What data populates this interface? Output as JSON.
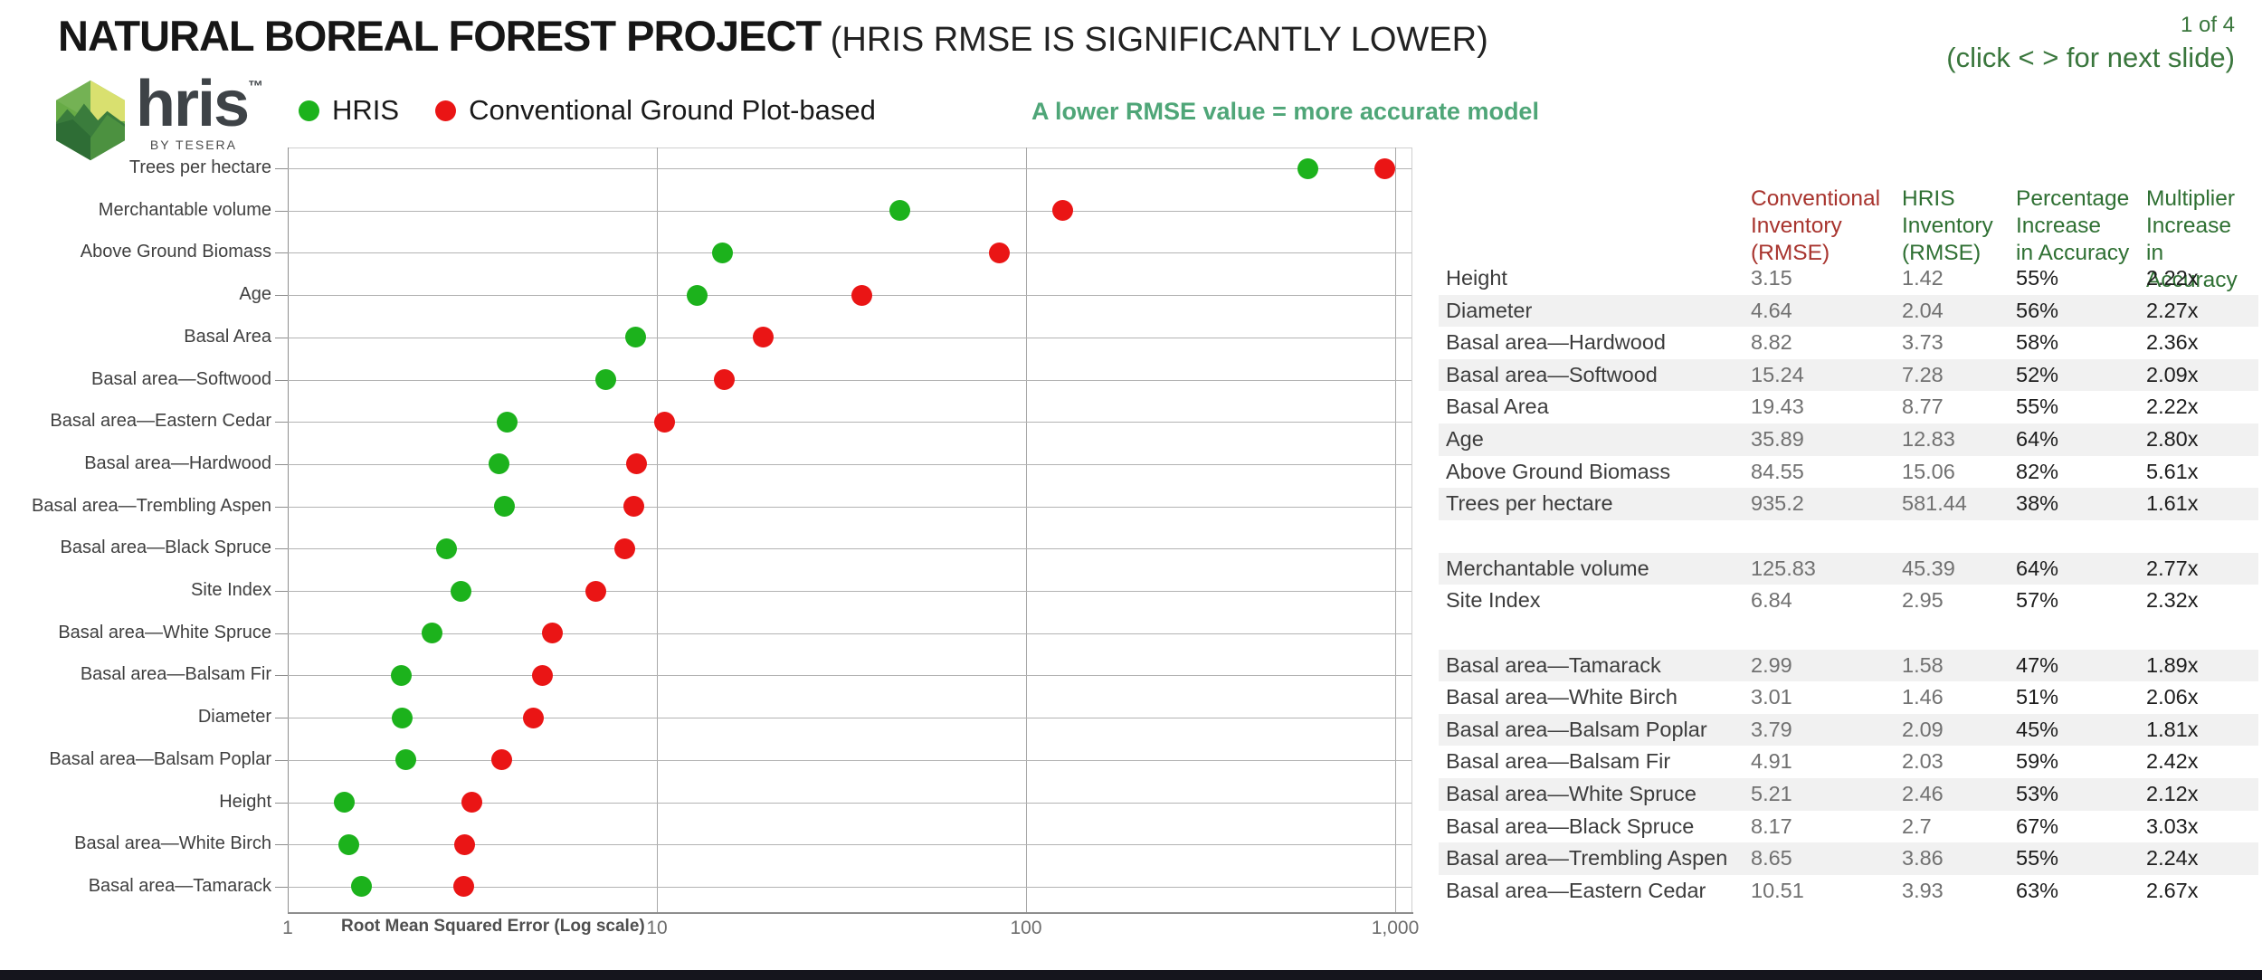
{
  "slide": {
    "title": "NATURAL BOREAL FOREST PROJECT",
    "subtitle": " (HRIS RMSE IS SIGNIFICANTLY LOWER)",
    "page_indicator": "1 of 4",
    "nav_hint": "(click < > for next slide)"
  },
  "logo": {
    "name": "hris",
    "tm": "™",
    "tagline": "BY TESERA"
  },
  "legend": [
    {
      "label": "HRIS",
      "color": "#1cb21c"
    },
    {
      "label": "Conventional Ground Plot-based",
      "color": "#ea1515"
    }
  ],
  "annotation": "A lower RMSE value = more accurate model",
  "chart_data": {
    "type": "scatter",
    "title": "NATURAL BOREAL FOREST PROJECT (HRIS RMSE IS SIGNIFICANTLY LOWER)",
    "xlabel": "Root Mean Squared Error (Log scale)",
    "ylabel": "",
    "x_scale": "log",
    "xlim": [
      1,
      1200
    ],
    "x_ticks": [
      1,
      10,
      100,
      1000
    ],
    "x_tick_labels": [
      "1",
      "10",
      "100",
      "1,000"
    ],
    "grid": true,
    "legend_position": "top-left",
    "categories": [
      "Trees per hectare",
      "Merchantable volume",
      "Above Ground Biomass",
      "Age",
      "Basal Area",
      "Basal area—Softwood",
      "Basal area—Eastern Cedar",
      "Basal area—Hardwood",
      "Basal area—Trembling Aspen",
      "Basal area—Black Spruce",
      "Site Index",
      "Basal area—White Spruce",
      "Basal area—Balsam Fir",
      "Diameter",
      "Basal area—Balsam Poplar",
      "Height",
      "Basal area—White Birch",
      "Basal area—Tamarack"
    ],
    "series": [
      {
        "name": "HRIS",
        "color": "#1cb21c",
        "values": [
          581.44,
          45.39,
          15.06,
          12.83,
          8.77,
          7.28,
          3.93,
          3.73,
          3.86,
          2.7,
          2.95,
          2.46,
          2.03,
          2.04,
          2.09,
          1.42,
          1.46,
          1.58
        ]
      },
      {
        "name": "Conventional Ground Plot-based",
        "color": "#ea1515",
        "values": [
          935.2,
          125.83,
          84.55,
          35.89,
          19.43,
          15.24,
          10.51,
          8.82,
          8.65,
          8.17,
          6.84,
          5.21,
          4.91,
          4.64,
          3.79,
          3.15,
          3.01,
          2.99
        ]
      }
    ]
  },
  "table": {
    "headers": [
      {
        "lines": [
          "Conventional",
          "Inventory",
          "(RMSE)"
        ],
        "color": "#a8342e"
      },
      {
        "lines": [
          "HRIS",
          "Inventory",
          "(RMSE)"
        ],
        "color": "#2f7033"
      },
      {
        "lines": [
          "Percentage",
          "Increase",
          "in Accuracy"
        ],
        "color": "#2f7033"
      },
      {
        "lines": [
          "Multiplier",
          "Increase",
          "in Accuracy"
        ],
        "color": "#2f7033"
      }
    ],
    "sections": [
      {
        "rows": [
          {
            "label": "Height",
            "conv": "3.15",
            "hris": "1.42",
            "pct": "55%",
            "mult": "2.22x"
          },
          {
            "label": "Diameter",
            "conv": "4.64",
            "hris": "2.04",
            "pct": "56%",
            "mult": "2.27x"
          },
          {
            "label": "Basal area—Hardwood",
            "conv": "8.82",
            "hris": "3.73",
            "pct": "58%",
            "mult": "2.36x"
          },
          {
            "label": "Basal area—Softwood",
            "conv": "15.24",
            "hris": "7.28",
            "pct": "52%",
            "mult": "2.09x"
          },
          {
            "label": "Basal Area",
            "conv": "19.43",
            "hris": "8.77",
            "pct": "55%",
            "mult": "2.22x"
          },
          {
            "label": "Age",
            "conv": "35.89",
            "hris": "12.83",
            "pct": "64%",
            "mult": "2.80x"
          },
          {
            "label": "Above Ground Biomass",
            "conv": "84.55",
            "hris": "15.06",
            "pct": "82%",
            "mult": "5.61x"
          },
          {
            "label": "Trees per hectare",
            "conv": "935.2",
            "hris": "581.44",
            "pct": "38%",
            "mult": "1.61x"
          }
        ]
      },
      {
        "rows": [
          {
            "label": "Merchantable volume",
            "conv": "125.83",
            "hris": "45.39",
            "pct": "64%",
            "mult": "2.77x"
          },
          {
            "label": "Site Index",
            "conv": "6.84",
            "hris": "2.95",
            "pct": "57%",
            "mult": "2.32x"
          }
        ]
      },
      {
        "rows": [
          {
            "label": "Basal area—Tamarack",
            "conv": "2.99",
            "hris": "1.58",
            "pct": "47%",
            "mult": "1.89x"
          },
          {
            "label": "Basal area—White Birch",
            "conv": "3.01",
            "hris": "1.46",
            "pct": "51%",
            "mult": "2.06x"
          },
          {
            "label": "Basal area—Balsam Poplar",
            "conv": "3.79",
            "hris": "2.09",
            "pct": "45%",
            "mult": "1.81x"
          },
          {
            "label": "Basal area—Balsam Fir",
            "conv": "4.91",
            "hris": "2.03",
            "pct": "59%",
            "mult": "2.42x"
          },
          {
            "label": "Basal area—White Spruce",
            "conv": "5.21",
            "hris": "2.46",
            "pct": "53%",
            "mult": "2.12x"
          },
          {
            "label": "Basal area—Black Spruce",
            "conv": "8.17",
            "hris": "2.7",
            "pct": "67%",
            "mult": "3.03x"
          },
          {
            "label": "Basal area—Trembling Aspen",
            "conv": "8.65",
            "hris": "3.86",
            "pct": "55%",
            "mult": "2.24x"
          },
          {
            "label": "Basal area—Eastern Cedar",
            "conv": "10.51",
            "hris": "3.93",
            "pct": "63%",
            "mult": "2.67x"
          }
        ]
      }
    ]
  }
}
